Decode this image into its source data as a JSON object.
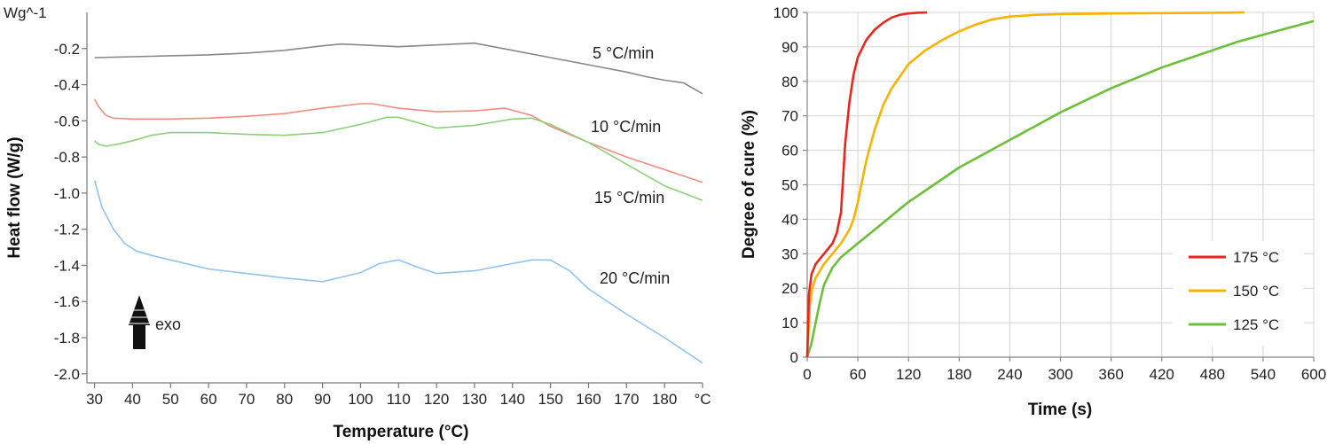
{
  "chart_data": [
    {
      "type": "line",
      "title": "",
      "xlabel": "Temperature (°C)",
      "ylabel": "Heat flow (W/g)",
      "unit_label": "Wg^-1",
      "xlim": [
        28,
        190
      ],
      "ylim": [
        -2.05,
        0.0
      ],
      "x_ticks": [
        "30",
        "40",
        "50",
        "60",
        "70",
        "80",
        "90",
        "100",
        "110",
        "120",
        "130",
        "140",
        "150",
        "160",
        "170",
        "180",
        "°C"
      ],
      "y_ticks": [
        "-0.2",
        "-0.4",
        "-0.6",
        "-0.8",
        "-1.0",
        "-1.2",
        "-1.4",
        "-1.6",
        "-1.8",
        "-2.0"
      ],
      "annotation": "exo",
      "grid": false,
      "series": [
        {
          "name": "5 °C/min",
          "color": "#888888",
          "x": [
            30,
            40,
            50,
            60,
            70,
            80,
            90,
            95,
            100,
            110,
            120,
            130,
            140,
            150,
            160,
            170,
            175,
            180,
            185,
            190
          ],
          "y": [
            -0.25,
            -0.245,
            -0.24,
            -0.235,
            -0.225,
            -0.21,
            -0.185,
            -0.175,
            -0.18,
            -0.19,
            -0.18,
            -0.17,
            -0.21,
            -0.25,
            -0.29,
            -0.33,
            -0.355,
            -0.375,
            -0.39,
            -0.45
          ]
        },
        {
          "name": "10 °C/min",
          "color": "#f08c82",
          "x": [
            30,
            31,
            33,
            35,
            40,
            50,
            60,
            70,
            80,
            90,
            100,
            103,
            110,
            120,
            130,
            138,
            145,
            150,
            160,
            170,
            180,
            190
          ],
          "y": [
            -0.48,
            -0.52,
            -0.57,
            -0.585,
            -0.59,
            -0.59,
            -0.585,
            -0.575,
            -0.56,
            -0.53,
            -0.505,
            -0.505,
            -0.53,
            -0.55,
            -0.545,
            -0.53,
            -0.57,
            -0.63,
            -0.72,
            -0.8,
            -0.87,
            -0.94
          ]
        },
        {
          "name": "15 °C/min",
          "color": "#8ecf7a",
          "x": [
            30,
            31,
            33,
            36,
            40,
            45,
            50,
            60,
            70,
            80,
            90,
            100,
            107,
            110,
            120,
            130,
            140,
            145,
            150,
            160,
            170,
            180,
            190
          ],
          "y": [
            -0.71,
            -0.73,
            -0.74,
            -0.73,
            -0.71,
            -0.68,
            -0.665,
            -0.665,
            -0.675,
            -0.68,
            -0.665,
            -0.62,
            -0.58,
            -0.58,
            -0.64,
            -0.625,
            -0.59,
            -0.585,
            -0.62,
            -0.72,
            -0.84,
            -0.96,
            -1.04
          ]
        },
        {
          "name": "20 °C/min",
          "color": "#8ec4ee",
          "x": [
            30,
            32,
            35,
            38,
            41,
            45,
            50,
            60,
            70,
            80,
            90,
            100,
            105,
            110,
            115,
            120,
            130,
            140,
            145,
            150,
            155,
            160,
            170,
            180,
            190
          ],
          "y": [
            -0.93,
            -1.08,
            -1.2,
            -1.28,
            -1.32,
            -1.345,
            -1.37,
            -1.42,
            -1.445,
            -1.47,
            -1.49,
            -1.44,
            -1.39,
            -1.37,
            -1.41,
            -1.445,
            -1.43,
            -1.39,
            -1.37,
            -1.37,
            -1.43,
            -1.53,
            -1.67,
            -1.8,
            -1.94
          ]
        }
      ]
    },
    {
      "type": "line",
      "title": "",
      "xlabel": "Time (s)",
      "ylabel": "Degree of cure (%)",
      "xlim": [
        0,
        600
      ],
      "ylim": [
        0,
        100
      ],
      "x_ticks": [
        "0",
        "60",
        "120",
        "180",
        "240",
        "300",
        "360",
        "420",
        "480",
        "540",
        "600"
      ],
      "y_ticks": [
        "0",
        "10",
        "20",
        "30",
        "40",
        "50",
        "60",
        "70",
        "80",
        "90",
        "100"
      ],
      "grid": true,
      "legend_position": "bottom-right",
      "series": [
        {
          "name": "175 °C",
          "color": "#e8261f",
          "x": [
            0,
            2,
            5,
            10,
            15,
            20,
            25,
            30,
            35,
            40,
            42,
            45,
            50,
            55,
            60,
            70,
            80,
            90,
            100,
            110,
            120,
            130,
            142
          ],
          "y": [
            0,
            18,
            24,
            27,
            28.5,
            30,
            31.5,
            33,
            36,
            42,
            50,
            62,
            74,
            82,
            87,
            92,
            95,
            97,
            98.5,
            99.3,
            99.7,
            99.9,
            100
          ]
        },
        {
          "name": "150 °C",
          "color": "#f5b400",
          "x": [
            0,
            3,
            6,
            10,
            20,
            30,
            40,
            50,
            55,
            60,
            70,
            80,
            90,
            100,
            120,
            140,
            160,
            180,
            200,
            220,
            240,
            270,
            300,
            360,
            420,
            480,
            518
          ],
          "y": [
            0,
            15,
            20,
            23,
            27,
            30,
            33,
            37,
            40,
            45,
            57,
            66,
            73,
            78,
            85,
            89,
            92,
            94.5,
            96.5,
            98,
            98.8,
            99.3,
            99.5,
            99.7,
            99.8,
            99.9,
            100
          ]
        },
        {
          "name": "125 °C",
          "color": "#6cbf3a",
          "x": [
            0,
            5,
            10,
            15,
            20,
            30,
            40,
            60,
            80,
            100,
            120,
            150,
            180,
            210,
            240,
            270,
            300,
            330,
            360,
            390,
            420,
            450,
            480,
            510,
            540,
            570,
            600
          ],
          "y": [
            0,
            4,
            10,
            16,
            21,
            26,
            29,
            33,
            37,
            41,
            45,
            50,
            55,
            59,
            63,
            67,
            71,
            74.5,
            78,
            81,
            84,
            86.5,
            89,
            91.5,
            93.5,
            95.5,
            97.5
          ]
        }
      ]
    }
  ]
}
